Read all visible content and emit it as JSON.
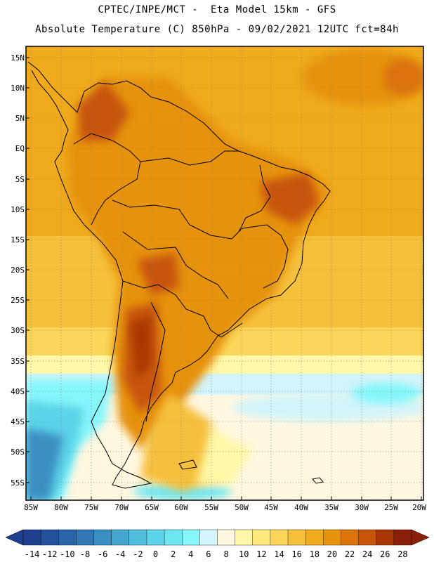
{
  "header": {
    "line1": "CPTEC/INPE/MCT -  Eta Model 15km - GFS",
    "line2": "Absolute Temperature (C) 850hPa - 09/02/2021 12UTC fct=84h"
  },
  "map": {
    "lat_labels": [
      "15N",
      "10N",
      "5N",
      "EQ",
      "5S",
      "10S",
      "15S",
      "20S",
      "25S",
      "30S",
      "35S",
      "40S",
      "45S",
      "50S",
      "55S"
    ],
    "lon_labels": [
      "85W",
      "80W",
      "75W",
      "70W",
      "65W",
      "60W",
      "55W",
      "50W",
      "45W",
      "40W",
      "35W",
      "30W",
      "25W",
      "20W"
    ]
  },
  "legend": {
    "labels": [
      "-14",
      "-12",
      "-10",
      "-8",
      "-6",
      "-4",
      "-2",
      "0",
      "2",
      "4",
      "6",
      "8",
      "10",
      "12",
      "14",
      "16",
      "18",
      "20",
      "22",
      "24",
      "26",
      "28"
    ],
    "colors": [
      "#1f3f8f",
      "#24519c",
      "#2b63a8",
      "#3278b5",
      "#3a8fc2",
      "#44a6cf",
      "#4fbddc",
      "#5cd3e8",
      "#6ee6f0",
      "#86f6fb",
      "#d2f4fa",
      "#fff7e0",
      "#fff8a8",
      "#ffe97a",
      "#fbd55a",
      "#f5c03c",
      "#efaa1d",
      "#e6920e",
      "#db720a",
      "#c85407",
      "#a93706",
      "#8b200a"
    ]
  }
}
